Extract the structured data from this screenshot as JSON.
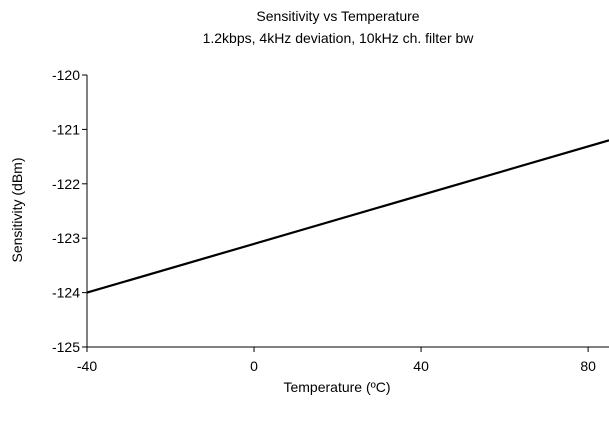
{
  "chart_data": {
    "type": "line",
    "title": "Sensitivity vs Temperature",
    "subtitle": "1.2kbps, 4kHz deviation, 10kHz ch. filter bw",
    "xlabel": "Temperature (ºC)",
    "ylabel": "Sensitivity (dBm)",
    "xlim": [
      -40,
      85
    ],
    "ylim": [
      -125,
      -120
    ],
    "x_ticks": [
      -40,
      0,
      40,
      80
    ],
    "y_ticks": [
      -120,
      -121,
      -122,
      -123,
      -124,
      -125
    ],
    "grid": false,
    "series": [
      {
        "x": [
          -40,
          85
        ],
        "y": [
          -124.0,
          -121.2
        ]
      }
    ],
    "colors": {
      "line": "#000000",
      "axes": "#000000"
    }
  }
}
